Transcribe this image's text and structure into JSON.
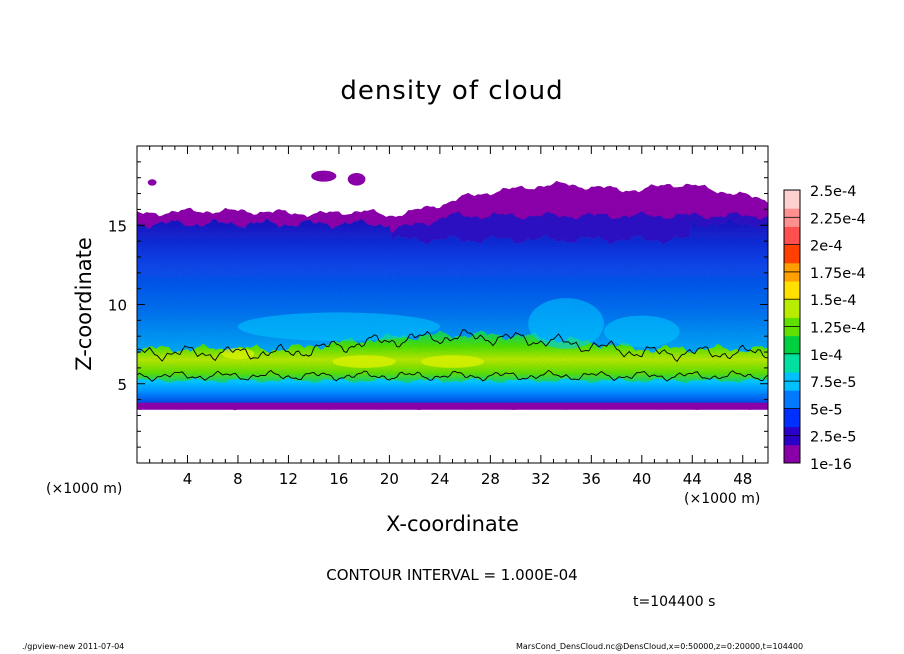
{
  "chart_data": {
    "type": "heatmap",
    "title": "density of cloud",
    "xlabel": "X-coordinate",
    "ylabel": "Z-coordinate",
    "x_unit_label": "(×1000 m)",
    "x_unit_label_2": "(×1000 m)",
    "xlim": [
      0,
      50
    ],
    "ylim": [
      0,
      20
    ],
    "x_ticks": [
      4,
      8,
      12,
      16,
      20,
      24,
      28,
      32,
      36,
      40,
      44,
      48
    ],
    "x_tick_labels": [
      "4",
      "8",
      "12",
      "16",
      "20",
      "24",
      "28",
      "32",
      "36",
      "40",
      "44",
      "48"
    ],
    "y_ticks": [
      5,
      10,
      15
    ],
    "y_tick_labels": [
      "5",
      "10",
      "15"
    ],
    "colorbar": {
      "labels": [
        "2.5e-4",
        "2.25e-4",
        "2e-4",
        "1.75e-4",
        "1.5e-4",
        "1.25e-4",
        "1e-4",
        "7.5e-5",
        "5e-5",
        "2.5e-5",
        "1e-16"
      ],
      "colors": [
        "#8a00a8",
        "#2a00c8",
        "#0030ff",
        "#0078ff",
        "#00c0ff",
        "#00e0a0",
        "#00d040",
        "#60e000",
        "#b8ec00",
        "#ffe000",
        "#ffa000",
        "#ff4000",
        "#ff5050",
        "#ff9090",
        "#ffd0d0"
      ]
    },
    "cloud_profile": {
      "cloud_top_z": [
        15.7,
        15.9,
        15.9,
        15.8,
        15.7,
        15.8,
        15.9,
        15.6,
        15.9,
        16.3,
        16.8,
        17.1,
        17.3,
        17.5,
        17.6,
        17.4,
        17.3,
        17.2,
        17.6,
        17.5,
        17.2,
        16.9,
        16.6
      ],
      "cloud_top_x": [
        0,
        4,
        8,
        12,
        14,
        16,
        18,
        20,
        22,
        24,
        26,
        28,
        30,
        32,
        34,
        36,
        38,
        40,
        42,
        44,
        46,
        48,
        50
      ],
      "cloud_base_z": 3.7,
      "dense_layer_bottom_z": 5.2,
      "dense_layer_top_z": 7.2
    },
    "contour_interval_text": "CONTOUR INTERVAL = 1.000E-04",
    "time_text": "t=104400 s"
  },
  "footer": {
    "left": "./gpview-new   2011-07-04",
    "right": "MarsCond_DensCloud.nc@DensCloud,x=0:50000,z=0:20000,t=104400"
  }
}
